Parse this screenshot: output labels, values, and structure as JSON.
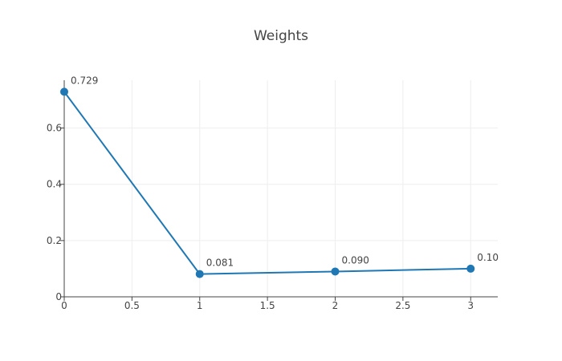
{
  "chart_data": {
    "type": "line",
    "title": "Weights",
    "xlabel": "",
    "ylabel": "",
    "x": [
      0,
      1,
      2,
      3
    ],
    "values": [
      0.729,
      0.081,
      0.09,
      0.1
    ],
    "data_labels": [
      "0.729",
      "0.081",
      "0.090",
      "0.10"
    ],
    "xlim": [
      0,
      3.2
    ],
    "ylim": [
      0,
      0.77
    ],
    "x_ticks": [
      0,
      0.5,
      1,
      1.5,
      2,
      2.5,
      3
    ],
    "x_tick_labels": [
      "0",
      "0.5",
      "1",
      "1.5",
      "2",
      "2.5",
      "3"
    ],
    "y_ticks": [
      0,
      0.2,
      0.4,
      0.6
    ],
    "y_tick_labels": [
      "0",
      "0.2",
      "0.4",
      "0.6"
    ],
    "grid": true,
    "legend": "none",
    "colors": {
      "series": "#1f77b4",
      "grid": "#eeeeee",
      "axis": "#444444"
    }
  }
}
